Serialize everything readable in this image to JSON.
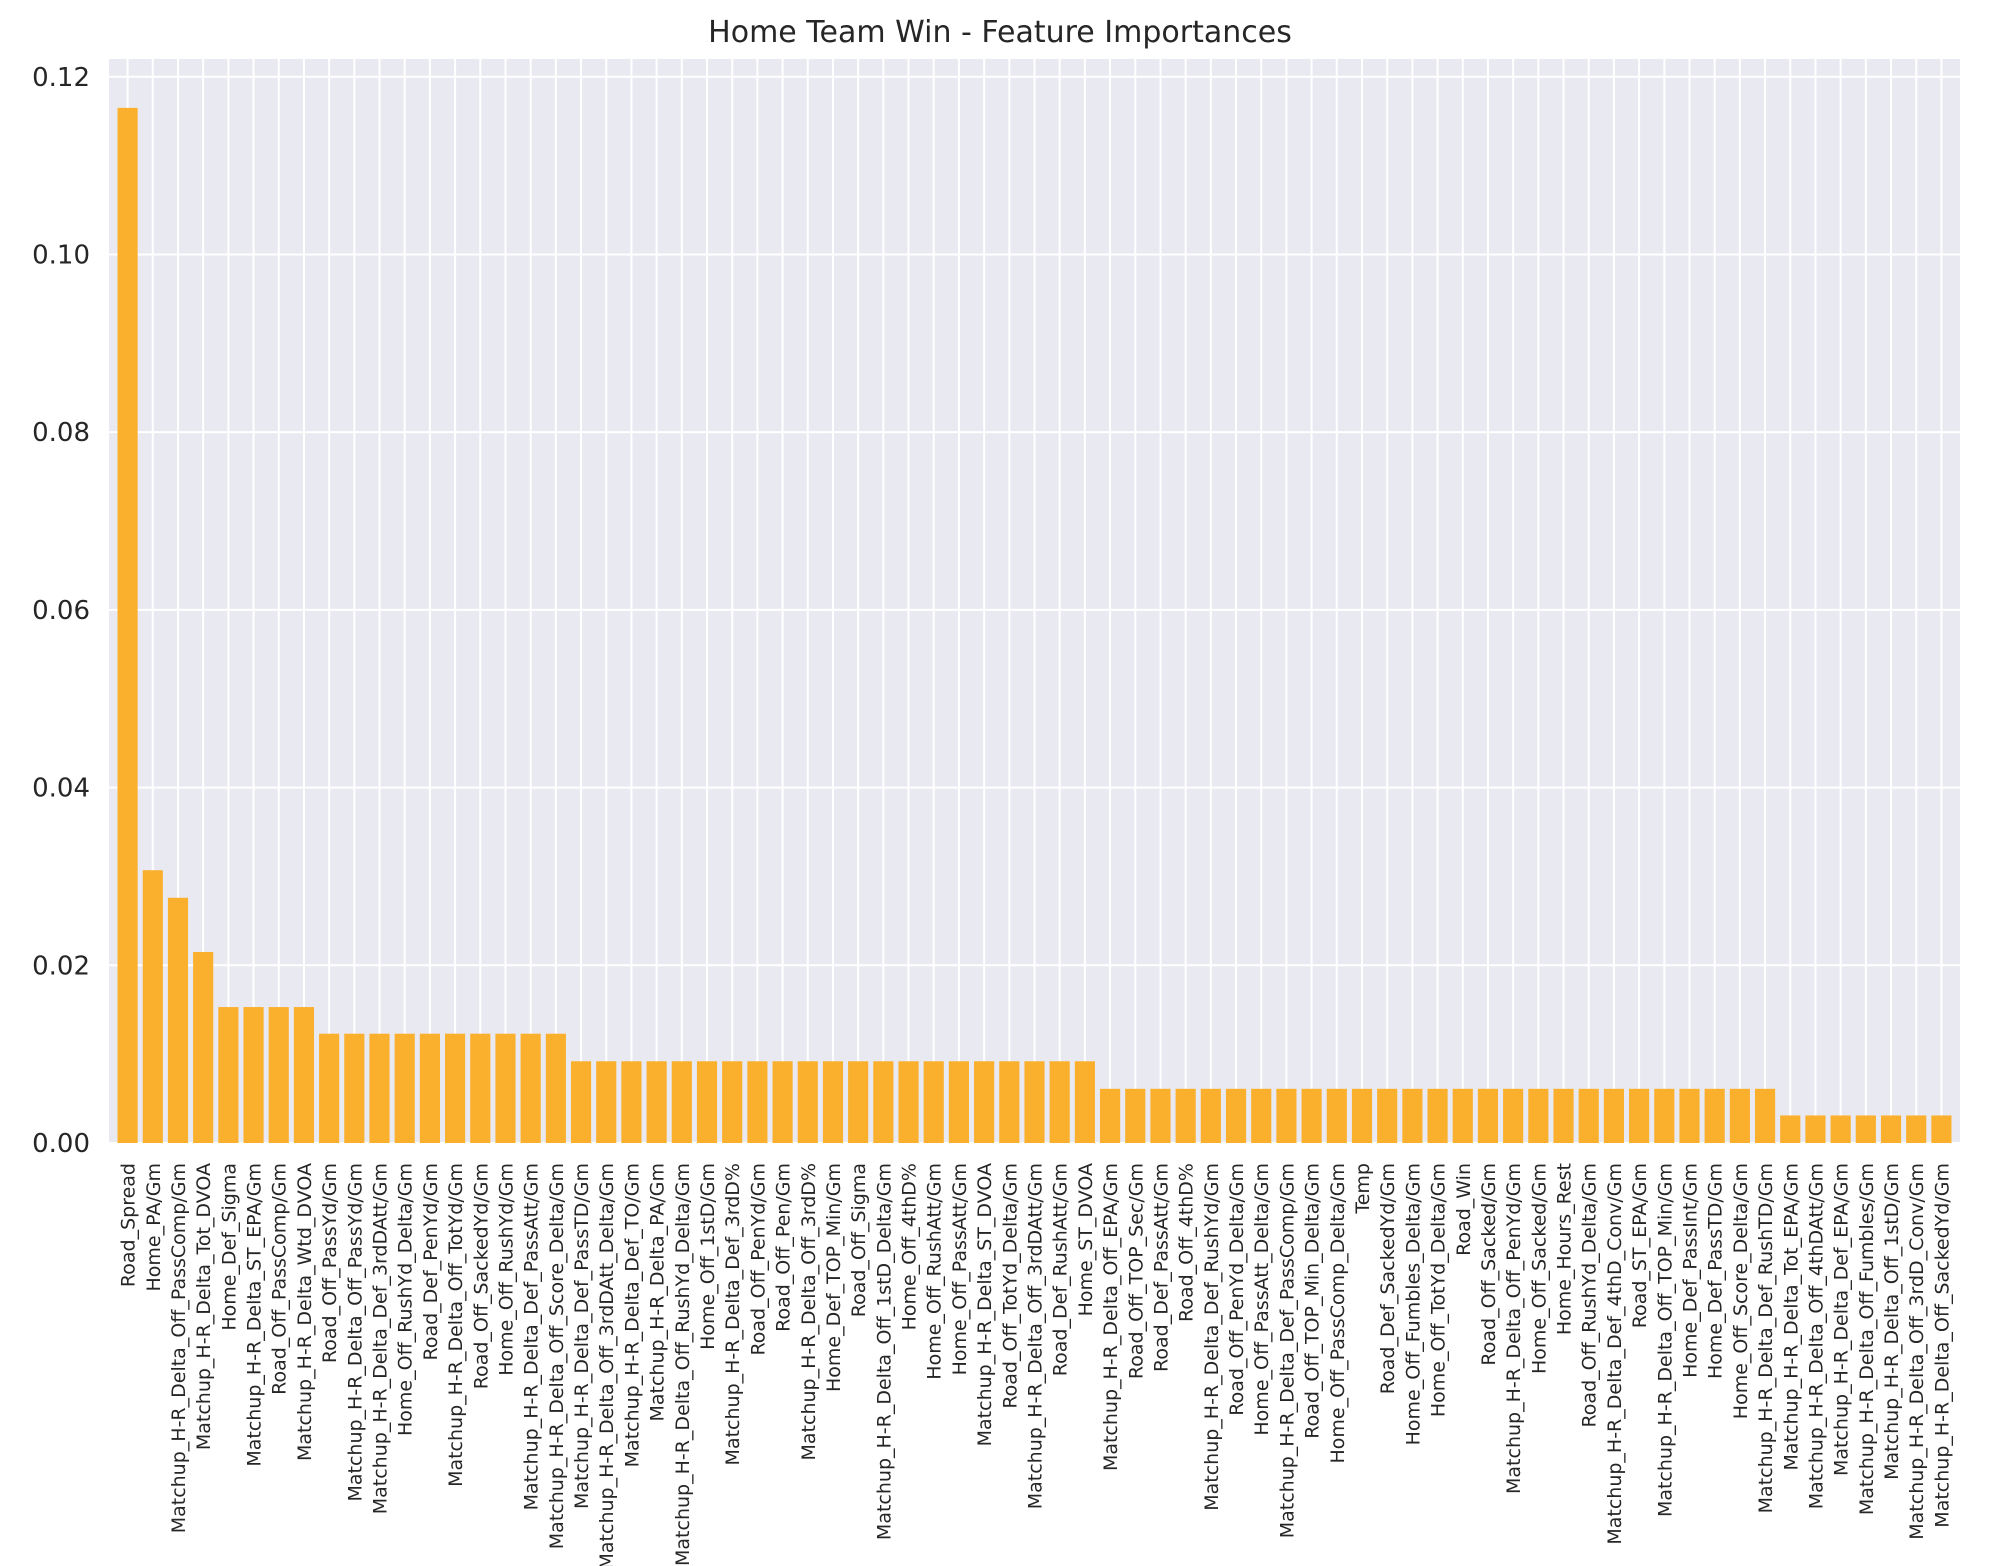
{
  "chart_data": {
    "type": "bar",
    "title": "Home Team Win - Feature Importances",
    "xlabel": "",
    "ylabel": "",
    "ylim": [
      0,
      0.122
    ],
    "yticks": [
      0.0,
      0.02,
      0.04,
      0.06,
      0.08,
      0.1,
      0.12
    ],
    "ytick_labels": [
      "0.00",
      "0.02",
      "0.04",
      "0.06",
      "0.08",
      "0.10",
      "0.12"
    ],
    "grid": true,
    "legend": "none",
    "bar_color": "#fbb02d",
    "plot_background": "#e9e9f1",
    "grid_color": "#ffffff",
    "categories": [
      "Road_Spread",
      "Home_PA/Gm",
      "Matchup_H-R_Delta_Off_PassComp/Gm",
      "Matchup_H-R_Delta_Tot_DVOA",
      "Home_Def_Sigma",
      "Matchup_H-R_Delta_ST_EPA/Gm",
      "Road_Off_PassComp/Gm",
      "Matchup_H-R_Delta_Wtd_DVOA",
      "Road_Off_PassYd/Gm",
      "Matchup_H-R_Delta_Off_PassYd/Gm",
      "Matchup_H-R_Delta_Def_3rdDAtt/Gm",
      "Home_Off_RushYd_Delta/Gm",
      "Road_Def_PenYd/Gm",
      "Matchup_H-R_Delta_Off_TotYd/Gm",
      "Road_Off_SackedYd/Gm",
      "Home_Off_RushYd/Gm",
      "Matchup_H-R_Delta_Def_PassAtt/Gm",
      "Matchup_H-R_Delta_Off_Score_Delta/Gm",
      "Matchup_H-R_Delta_Def_PassTD/Gm",
      "Matchup_H-R_Delta_Off_3rdDAtt_Delta/Gm",
      "Matchup_H-R_Delta_Def_TO/Gm",
      "Matchup_H-R_Delta_PA/Gm",
      "Matchup_H-R_Delta_Off_RushYd_Delta/Gm",
      "Home_Off_1stD/Gm",
      "Matchup_H-R_Delta_Def_3rdD%",
      "Road_Off_PenYd/Gm",
      "Road_Off_Pen/Gm",
      "Matchup_H-R_Delta_Off_3rdD%",
      "Home_Def_TOP_Min/Gm",
      "Road_Off_Sigma",
      "Matchup_H-R_Delta_Off_1stD_Delta/Gm",
      "Home_Off_4thD%",
      "Home_Off_RushAtt/Gm",
      "Home_Off_PassAtt/Gm",
      "Matchup_H-R_Delta_ST_DVOA",
      "Road_Off_TotYd_Delta/Gm",
      "Matchup_H-R_Delta_Off_3rdDAtt/Gm",
      "Road_Def_RushAtt/Gm",
      "Home_ST_DVOA",
      "Matchup_H-R_Delta_Off_EPA/Gm",
      "Road_Off_TOP_Sec/Gm",
      "Road_Def_PassAtt/Gm",
      "Road_Off_4thD%",
      "Matchup_H-R_Delta_Def_RushYd/Gm",
      "Road_Off_PenYd_Delta/Gm",
      "Home_Off_PassAtt_Delta/Gm",
      "Matchup_H-R_Delta_Def_PassComp/Gm",
      "Road_Off_TOP_Min_Delta/Gm",
      "Home_Off_PassComp_Delta/Gm",
      "Temp",
      "Road_Def_SackedYd/Gm",
      "Home_Off_Fumbles_Delta/Gm",
      "Home_Off_TotYd_Delta/Gm",
      "Road_Win",
      "Road_Off_Sacked/Gm",
      "Matchup_H-R_Delta_Off_PenYd/Gm",
      "Home_Off_Sacked/Gm",
      "Home_Hours_Rest",
      "Road_Off_RushYd_Delta/Gm",
      "Matchup_H-R_Delta_Def_4thD_Conv/Gm",
      "Road_ST_EPA/Gm",
      "Matchup_H-R_Delta_Off_TOP_Min/Gm",
      "Home_Def_PassInt/Gm",
      "Home_Def_PassTD/Gm",
      "Home_Off_Score_Delta/Gm",
      "Matchup_H-R_Delta_Def_RushTD/Gm",
      "Matchup_H-R_Delta_Tot_EPA/Gm",
      "Matchup_H-R_Delta_Off_4thDAtt/Gm",
      "Matchup_H-R_Delta_Def_EPA/Gm",
      "Matchup_H-R_Delta_Off_Fumbles/Gm",
      "Matchup_H-R_Delta_Off_1stD/Gm",
      "Matchup_H-R_Delta_Off_3rdD_Conv/Gm",
      "Matchup_H-R_Delta_Off_SackedYd/Gm"
    ],
    "values": [
      0.1165,
      0.0307,
      0.0276,
      0.0215,
      0.0153,
      0.0153,
      0.0153,
      0.0153,
      0.0123,
      0.0123,
      0.0123,
      0.0123,
      0.0123,
      0.0123,
      0.0123,
      0.0123,
      0.0123,
      0.0123,
      0.0092,
      0.0092,
      0.0092,
      0.0092,
      0.0092,
      0.0092,
      0.0092,
      0.0092,
      0.0092,
      0.0092,
      0.0092,
      0.0092,
      0.0092,
      0.0092,
      0.0092,
      0.0092,
      0.0092,
      0.0092,
      0.0092,
      0.0092,
      0.0092,
      0.0061,
      0.0061,
      0.0061,
      0.0061,
      0.0061,
      0.0061,
      0.0061,
      0.0061,
      0.0061,
      0.0061,
      0.0061,
      0.0061,
      0.0061,
      0.0061,
      0.0061,
      0.0061,
      0.0061,
      0.0061,
      0.0061,
      0.0061,
      0.0061,
      0.0061,
      0.0061,
      0.0061,
      0.0061,
      0.0061,
      0.0061,
      0.0031,
      0.0031,
      0.0031,
      0.0031,
      0.0031,
      0.0031,
      0.0031
    ]
  }
}
